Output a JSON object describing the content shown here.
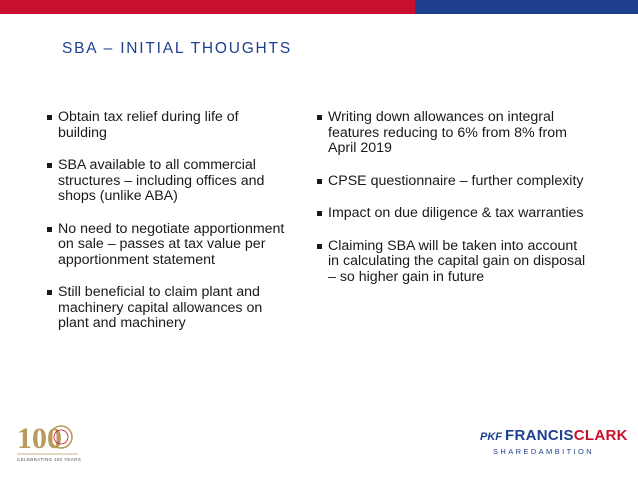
{
  "colors": {
    "bar_red": "#c8102e",
    "bar_navy": "#1f3f8f",
    "title": "#1f3f8f",
    "text": "#1a1a1a"
  },
  "title": "SBA – INITIAL THOUGHTS",
  "left_bullets": [
    "Obtain tax relief during life of building",
    "SBA available to all commercial structures – including offices and shops (unlike ABA)",
    "No need to negotiate apportionment on sale – passes at tax value per apportionment statement",
    "Still beneficial to claim plant and machinery capital allowances on plant and machinery"
  ],
  "right_bullets": [
    "Writing down allowances on integral features reducing to 6% from 8% from April 2019",
    "CPSE questionnaire – further complexity",
    "Impact on due diligence & tax warranties",
    "Claiming SBA will be taken into account in calculating the capital gain on disposal – so higher gain in future"
  ],
  "footer": {
    "anniversary_logo": {
      "number": "100",
      "caption": "CELEBRATING 100 YEARS",
      "icon": "centenary-logo-icon"
    },
    "brand": {
      "mark": "PKF",
      "name_part1": "FRANCIS",
      "name_part2": "CLARK",
      "tagline": "SHAREDAMBITION"
    }
  }
}
